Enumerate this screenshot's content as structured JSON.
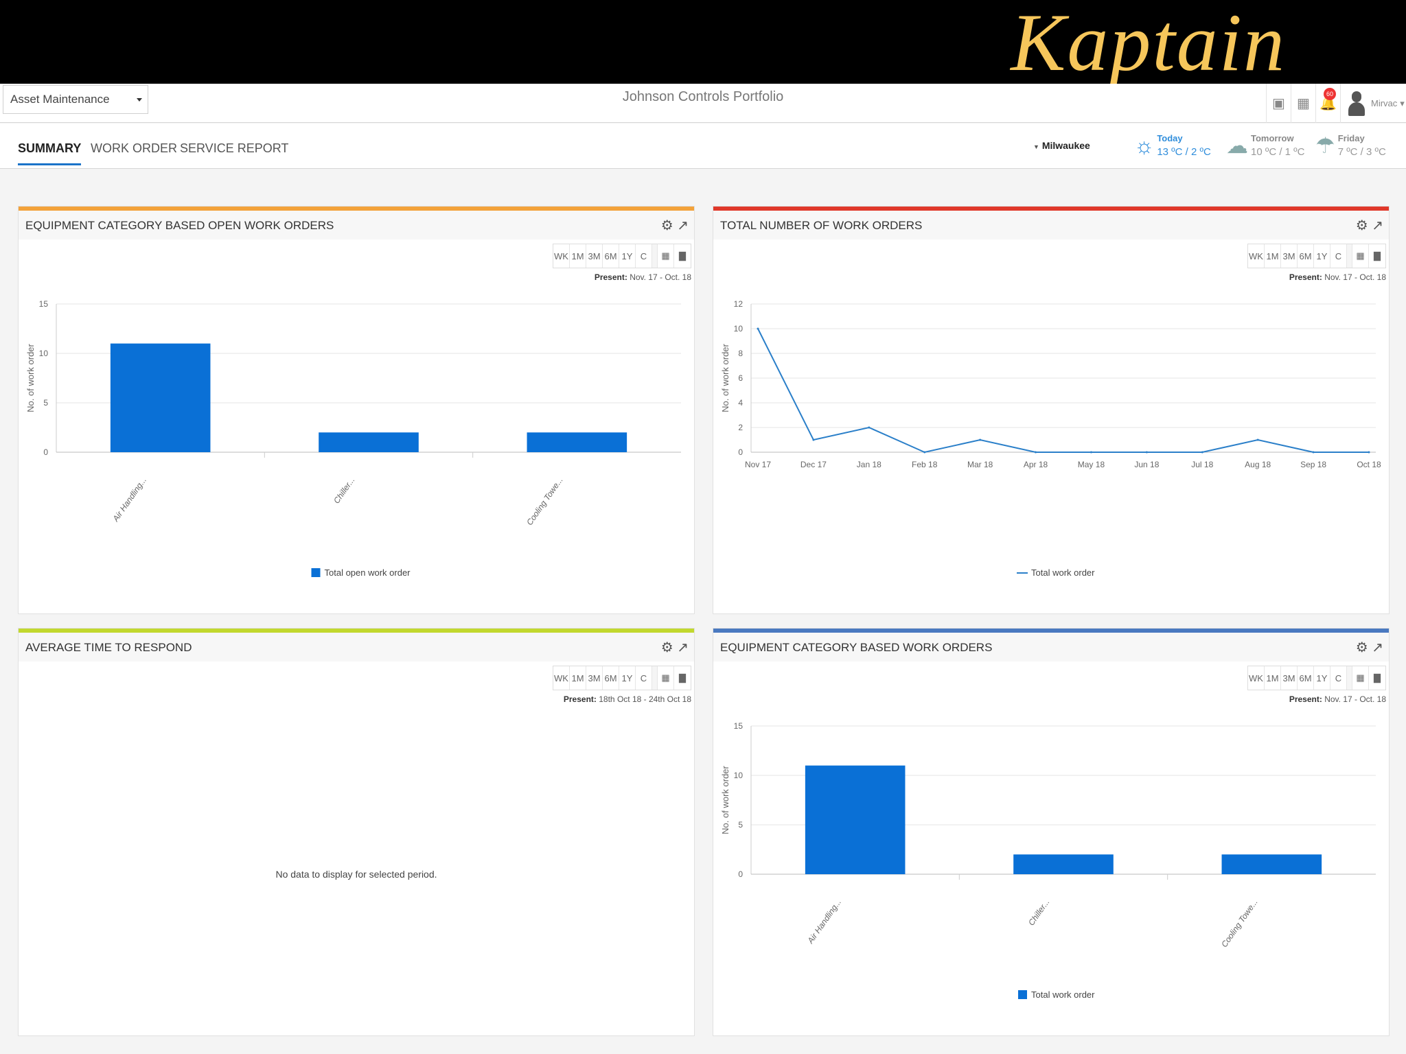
{
  "banner": {
    "title": "Kaptain"
  },
  "topbar": {
    "module": "Asset Maintenance",
    "portfolio": "Johnson Controls Portfolio",
    "notifications": "60",
    "user": "Mirvac"
  },
  "nav": {
    "tabs": [
      {
        "label": "SUMMARY"
      },
      {
        "label": "WORK ORDER"
      },
      {
        "label": "SERVICE REPORT"
      }
    ],
    "location": "Milwaukee"
  },
  "weather": [
    {
      "day": "Today",
      "temp": "13 ºC / 2 ºC"
    },
    {
      "day": "Tomorrow",
      "temp": "10 ºC / 1 ºC"
    },
    {
      "day": "Friday",
      "temp": "7 ºC / 3 ºC"
    }
  ],
  "range_buttons": [
    "WK",
    "1M",
    "3M",
    "6M",
    "1Y",
    "C"
  ],
  "panels": {
    "p1": {
      "title": "EQUIPMENT CATEGORY BASED OPEN WORK ORDERS",
      "present_label": "Present:",
      "present_range": "Nov. 17 - Oct. 18",
      "accent": "#f3a23a"
    },
    "p2": {
      "title": "TOTAL NUMBER OF WORK ORDERS",
      "present_label": "Present:",
      "present_range": "Nov. 17 - Oct. 18",
      "accent": "#e0382a"
    },
    "p3": {
      "title": "AVERAGE TIME TO RESPOND",
      "present_label": "Present:",
      "present_range": "18th Oct 18 - 24th Oct 18",
      "accent": "#c2d82e",
      "nodata": "No data to display for selected period."
    },
    "p4": {
      "title": "EQUIPMENT CATEGORY BASED WORK ORDERS",
      "present_label": "Present:",
      "present_range": "Nov. 17 - Oct. 18",
      "accent": "#4a79c0"
    }
  },
  "chart_data": [
    {
      "type": "bar",
      "categories": [
        "Air Handling...",
        "Chiller...",
        "Cooling Towe..."
      ],
      "series": [
        {
          "name": "Total open work order",
          "values": [
            11,
            2,
            2
          ]
        }
      ],
      "ylabel": "No. of work order",
      "ylim": [
        0,
        15
      ],
      "yticks": [
        0,
        5,
        10,
        15
      ],
      "color": "#0a70d6",
      "legend": "bottom"
    },
    {
      "type": "line",
      "categories": [
        "Nov 17",
        "Dec 17",
        "Jan 18",
        "Feb 18",
        "Mar 18",
        "Apr 18",
        "May 18",
        "Jun 18",
        "Jul 18",
        "Aug 18",
        "Sep 18",
        "Oct 18"
      ],
      "series": [
        {
          "name": "Total work order",
          "values": [
            10,
            1,
            2,
            0,
            1,
            0,
            0,
            0,
            0,
            1,
            0,
            0
          ]
        }
      ],
      "ylabel": "No. of work order",
      "ylim": [
        0,
        12
      ],
      "yticks": [
        0,
        2,
        4,
        6,
        8,
        10,
        12
      ],
      "color": "#2a7fc9",
      "legend": "bottom"
    },
    {
      "type": "bar",
      "categories": [
        "Air Handling...",
        "Chiller...",
        "Cooling Towe..."
      ],
      "series": [
        {
          "name": "Total work order",
          "values": [
            11,
            2,
            2
          ]
        }
      ],
      "ylabel": "No. of work order",
      "ylim": [
        0,
        15
      ],
      "yticks": [
        0,
        5,
        10,
        15
      ],
      "color": "#0a70d6",
      "legend": "bottom"
    }
  ]
}
